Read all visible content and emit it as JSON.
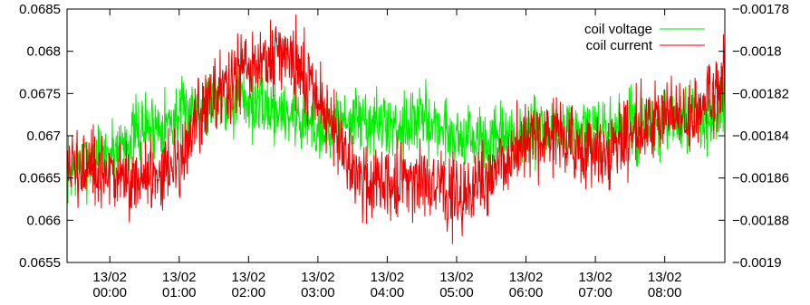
{
  "chart_data": {
    "type": "line",
    "title": "",
    "xlabel": "",
    "ylabel": "",
    "y2label": "",
    "grid": false,
    "legend_placement": "top-right",
    "xlim": [
      "2013-02-12T23:23",
      "2013-02-13T08:52"
    ],
    "ylim": [
      0.0655,
      0.0685
    ],
    "y2lim": [
      -0.0019,
      -0.00178
    ],
    "x_ticks": [
      {
        "time": "2013-02-13T00:00",
        "line1": "13/02",
        "line2": "00:00"
      },
      {
        "time": "2013-02-13T01:00",
        "line1": "13/02",
        "line2": "01:00"
      },
      {
        "time": "2013-02-13T02:00",
        "line1": "13/02",
        "line2": "02:00"
      },
      {
        "time": "2013-02-13T03:00",
        "line1": "13/02",
        "line2": "03:00"
      },
      {
        "time": "2013-02-13T04:00",
        "line1": "13/02",
        "line2": "04:00"
      },
      {
        "time": "2013-02-13T05:00",
        "line1": "13/02",
        "line2": "05:00"
      },
      {
        "time": "2013-02-13T06:00",
        "line1": "13/02",
        "line2": "06:00"
      },
      {
        "time": "2013-02-13T07:00",
        "line1": "13/02",
        "line2": "07:00"
      },
      {
        "time": "2013-02-13T08:00",
        "line1": "13/02",
        "line2": "08:00"
      }
    ],
    "y_ticks": [
      {
        "value": 0.0655,
        "label": "0.0655"
      },
      {
        "value": 0.066,
        "label": "0.066"
      },
      {
        "value": 0.0665,
        "label": "0.0665"
      },
      {
        "value": 0.067,
        "label": "0.067"
      },
      {
        "value": 0.0675,
        "label": "0.0675"
      },
      {
        "value": 0.068,
        "label": "0.068"
      },
      {
        "value": 0.0685,
        "label": "0.0685"
      }
    ],
    "y2_ticks": [
      {
        "value": -0.0019,
        "label": "−0.0019"
      },
      {
        "value": -0.00188,
        "label": "−0.00188"
      },
      {
        "value": -0.00186,
        "label": "−0.00186"
      },
      {
        "value": -0.00184,
        "label": "−0.00184"
      },
      {
        "value": -0.00182,
        "label": "−0.00182"
      },
      {
        "value": -0.0018,
        "label": "−0.0018"
      },
      {
        "value": -0.00178,
        "label": "−0.00178"
      }
    ],
    "series": [
      {
        "name": "coil voltage",
        "axis": "left",
        "color": "#00ee00",
        "noise": 0.0004,
        "times": [
          "2013-02-12T23:23",
          "2013-02-13T00:00",
          "2013-02-13T00:30",
          "2013-02-13T01:00",
          "2013-02-13T01:30",
          "2013-02-13T02:00",
          "2013-02-13T02:30",
          "2013-02-13T03:00",
          "2013-02-13T03:30",
          "2013-02-13T04:00",
          "2013-02-13T04:30",
          "2013-02-13T05:00",
          "2013-02-13T05:30",
          "2013-02-13T06:00",
          "2013-02-13T06:30",
          "2013-02-13T07:00",
          "2013-02-13T07:30",
          "2013-02-13T08:00",
          "2013-02-13T08:30",
          "2013-02-13T08:52"
        ],
        "values": [
          0.0666,
          0.0668,
          0.0671,
          0.0672,
          0.0675,
          0.0674,
          0.0673,
          0.0671,
          0.0672,
          0.0671,
          0.0672,
          0.067,
          0.0669,
          0.067,
          0.0671,
          0.067,
          0.0671,
          0.0671,
          0.0672,
          0.0673
        ]
      },
      {
        "name": "coil current",
        "axis": "right",
        "color": "#ee0000",
        "noise": 1.8e-05,
        "times": [
          "2013-02-12T23:23",
          "2013-02-13T00:00",
          "2013-02-13T00:30",
          "2013-02-13T01:00",
          "2013-02-13T01:30",
          "2013-02-13T02:00",
          "2013-02-13T02:30",
          "2013-02-13T03:00",
          "2013-02-13T03:30",
          "2013-02-13T04:00",
          "2013-02-13T04:30",
          "2013-02-13T05:00",
          "2013-02-13T05:30",
          "2013-02-13T06:00",
          "2013-02-13T06:30",
          "2013-02-13T07:00",
          "2013-02-13T07:30",
          "2013-02-13T08:00",
          "2013-02-13T08:30",
          "2013-02-13T08:52"
        ],
        "values": [
          -0.001855,
          -0.00186,
          -0.00186,
          -0.00185,
          -0.00182,
          -0.00181,
          -0.0018,
          -0.00182,
          -0.00186,
          -0.00186,
          -0.00186,
          -0.00187,
          -0.00186,
          -0.00184,
          -0.00184,
          -0.00185,
          -0.00184,
          -0.00183,
          -0.00183,
          -0.00181
        ]
      }
    ]
  }
}
